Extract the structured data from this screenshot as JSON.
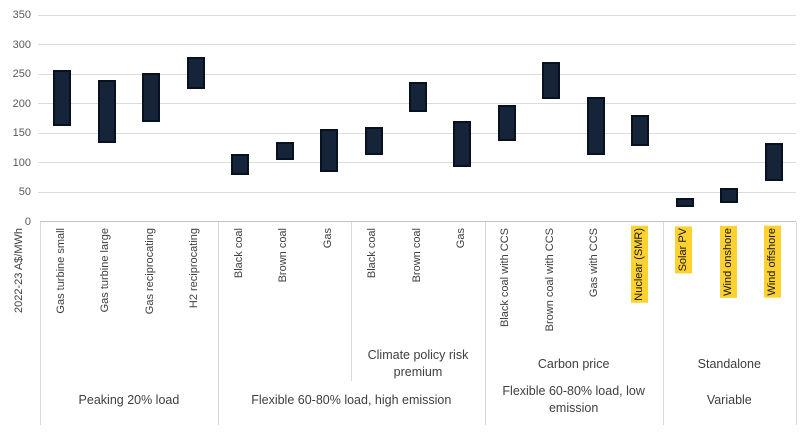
{
  "chart_data": {
    "type": "bar",
    "variant": "floating-range-columns",
    "title": "",
    "xlabel": "",
    "ylabel": "2022-23 A$/MWh",
    "ylim": [
      0,
      350
    ],
    "ytick_step": 50,
    "yticks": [
      0,
      50,
      100,
      150,
      200,
      250,
      300,
      350
    ],
    "grid": true,
    "legend": "none",
    "units": "A$/MWh",
    "groups": [
      {
        "label": "Peaking 20% load",
        "sublabels": [],
        "sub_dividers": [],
        "items": [
          {
            "label": "Gas turbine small",
            "low": 162,
            "high": 257,
            "highlight": false
          },
          {
            "label": "Gas turbine large",
            "low": 133,
            "high": 239,
            "highlight": false
          },
          {
            "label": "Gas reciprocating",
            "low": 169,
            "high": 252,
            "highlight": false
          },
          {
            "label": "H2 reciprocating",
            "low": 225,
            "high": 279,
            "highlight": false
          }
        ]
      },
      {
        "label": "Flexible 60-80% load, high emission",
        "sublabels": [
          {
            "text": "Climate policy risk premium",
            "start": 3,
            "count": 3
          }
        ],
        "sub_dividers": [
          3
        ],
        "items": [
          {
            "label": "Black coal",
            "low": 78,
            "high": 114,
            "highlight": false
          },
          {
            "label": "Brown coal",
            "low": 104,
            "high": 135,
            "highlight": false
          },
          {
            "label": "Gas",
            "low": 84,
            "high": 156,
            "highlight": false
          },
          {
            "label": "Black coal",
            "low": 113,
            "high": 160,
            "highlight": false
          },
          {
            "label": "Brown coal",
            "low": 185,
            "high": 237,
            "highlight": false
          },
          {
            "label": "Gas",
            "low": 93,
            "high": 170,
            "highlight": false
          }
        ]
      },
      {
        "label": "Flexible 60-80% load, low emission",
        "sublabels": [
          {
            "text": "Carbon price",
            "start": 0,
            "count": 4
          }
        ],
        "sub_dividers": [],
        "items": [
          {
            "label": "Black coal with CCS",
            "low": 136,
            "high": 198,
            "highlight": false
          },
          {
            "label": "Brown coal with CCS",
            "low": 207,
            "high": 271,
            "highlight": false
          },
          {
            "label": "Gas with CCS",
            "low": 113,
            "high": 211,
            "highlight": false
          },
          {
            "label": "Nuclear (SMR)",
            "low": 128,
            "high": 181,
            "highlight": true
          }
        ]
      },
      {
        "label": "Variable",
        "sublabels": [
          {
            "text": "Standalone",
            "start": 0,
            "count": 3
          }
        ],
        "sub_dividers": [],
        "items": [
          {
            "label": "Solar PV",
            "low": 24,
            "high": 40,
            "highlight": true
          },
          {
            "label": "Wind onshore",
            "low": 32,
            "high": 56,
            "highlight": true
          },
          {
            "label": "Wind offshore",
            "low": 68,
            "high": 133,
            "highlight": true
          }
        ]
      }
    ],
    "colors": {
      "bar_fill": "#152439",
      "bar_border": "#081120",
      "highlight": "#fdd230",
      "gridline": "#dcdcdc",
      "axis_line": "#c3c3c3",
      "divider": "#d9d9d9",
      "tick_text": "#595959",
      "label_text": "#3f3f3f"
    }
  }
}
